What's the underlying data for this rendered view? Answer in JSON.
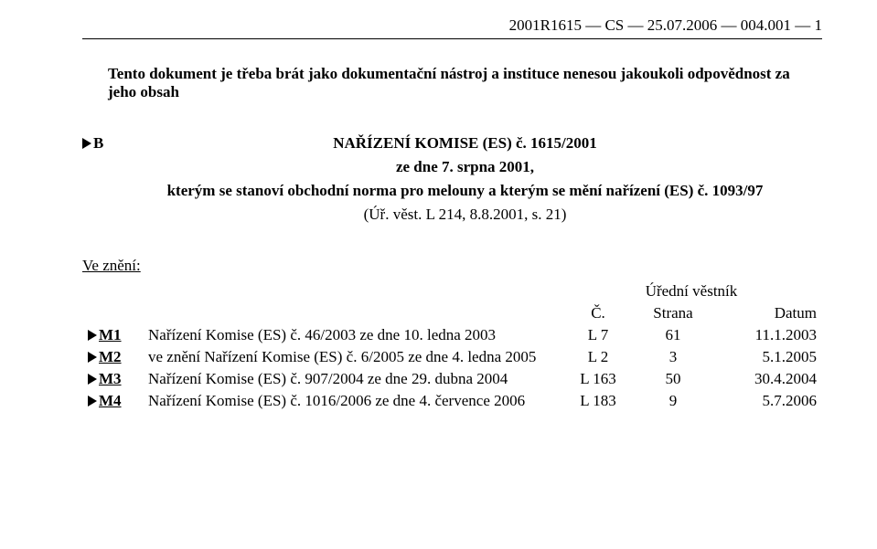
{
  "header_line": "2001R1615 — CS — 25.07.2006 — 004.001 — 1",
  "intro": "Tento dokument je třeba brát jako dokumentační nástroj a instituce nenesou jakoukoli odpovědnost za jeho obsah",
  "b_label": "B",
  "reg_title": "NAŘÍZENÍ KOMISE (ES) č. 1615/2001",
  "reg_date": "ze dne 7. srpna 2001,",
  "reg_desc": "kterým se stanoví obchodní norma pro melouny a kterým se mění nařízení (ES) č. 1093/97",
  "reg_ref": "(Úř. věst. L 214, 8.8.2001, s. 21)",
  "amend_heading": "Ve znění:",
  "journal_header": "Úřední věstník",
  "col_num": "Č.",
  "col_page": "Strana",
  "col_date": "Datum",
  "rows": [
    {
      "mark": "M1",
      "desc": "Nařízení Komise (ES) č. 46/2003 ze dne 10. ledna 2003",
      "num": "L 7",
      "page": "61",
      "date": "11.1.2003"
    },
    {
      "mark": "M2",
      "desc": "ve znění Nařízení Komise (ES) č. 6/2005 ze dne 4. ledna 2005",
      "num": "L 2",
      "page": "3",
      "date": "5.1.2005"
    },
    {
      "mark": "M3",
      "desc": "Nařízení Komise (ES) č. 907/2004 ze dne 29. dubna 2004",
      "num": "L 163",
      "page": "50",
      "date": "30.4.2004"
    },
    {
      "mark": "M4",
      "desc": "Nařízení Komise (ES) č. 1016/2006 ze dne 4. července 2006",
      "num": "L 183",
      "page": "9",
      "date": "5.7.2006"
    }
  ]
}
